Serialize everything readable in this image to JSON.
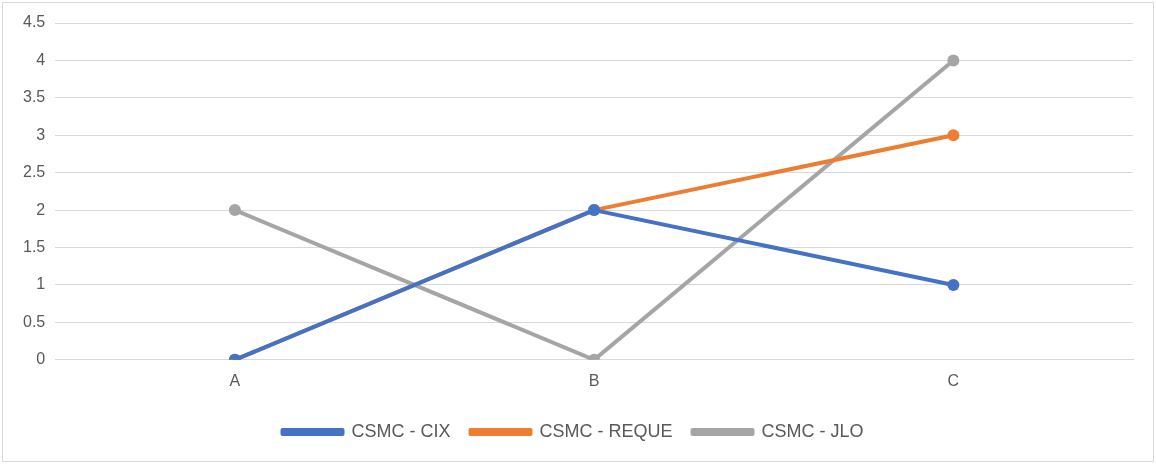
{
  "chart_data": {
    "type": "line",
    "categories": [
      "A",
      "B",
      "C"
    ],
    "series": [
      {
        "name": "CSMC - CIX",
        "color": "#4472c4",
        "values": [
          0,
          2,
          1
        ]
      },
      {
        "name": "CSMC - REQUE",
        "color": "#ed7d31",
        "values": [
          0,
          2,
          3
        ]
      },
      {
        "name": "CSMC - JLO",
        "color": "#a5a5a5",
        "values": [
          2,
          0,
          4
        ]
      }
    ],
    "ylim": [
      0,
      4.5
    ],
    "yticks": [
      0,
      0.5,
      1,
      1.5,
      2,
      2.5,
      3,
      3.5,
      4,
      4.5
    ],
    "grid": "y",
    "legend": "bottom",
    "marker": "circle",
    "line_style": "solid"
  }
}
